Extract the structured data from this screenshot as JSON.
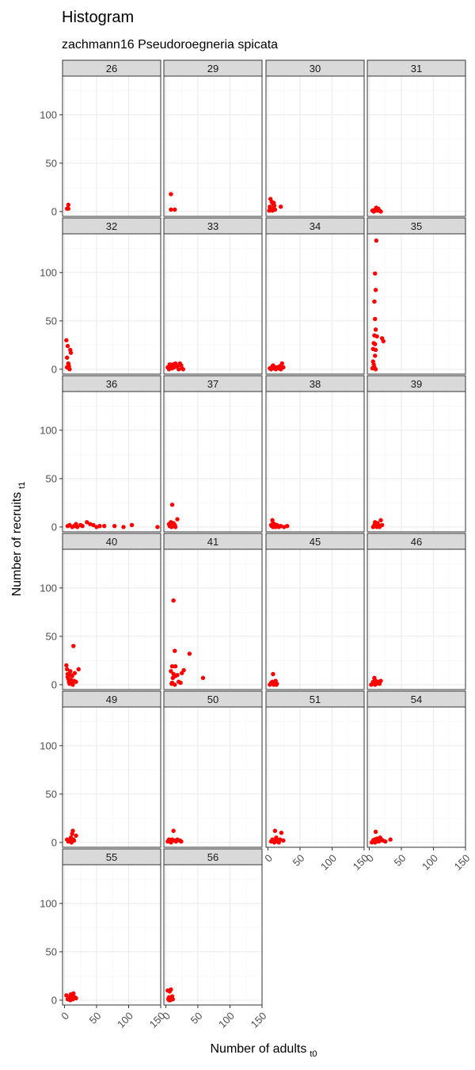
{
  "title": "Histogram",
  "subtitle": "zachmann16 Pseudoroegneria spicata",
  "colors": {
    "points": "#ff0000",
    "strip_fill": "#d9d9d9",
    "panel_border": "#333333",
    "grid_major": "#ebebeb",
    "grid_minor": "#f5f5f5"
  },
  "chart_data": {
    "type": "scatter",
    "facet_by": "quadrat",
    "xlabel": "Number of adults",
    "xlabel_sub": "t0",
    "ylabel": "Number of recruits",
    "ylabel_sub": "t1",
    "xlim": [
      -3,
      150
    ],
    "ylim": [
      -5,
      140
    ],
    "x_ticks": [
      0,
      50,
      100,
      150
    ],
    "y_ticks": [
      0,
      50,
      100
    ],
    "grid": true,
    "panels": [
      {
        "label": "26",
        "points": [
          [
            4,
            3
          ],
          [
            6,
            7
          ],
          [
            6,
            3
          ]
        ]
      },
      {
        "label": "29",
        "points": [
          [
            8,
            18
          ],
          [
            8,
            2
          ],
          [
            14,
            2
          ]
        ]
      },
      {
        "label": "30",
        "points": [
          [
            2,
            1
          ],
          [
            3,
            5
          ],
          [
            4,
            13
          ],
          [
            6,
            10
          ],
          [
            6,
            3
          ],
          [
            8,
            8
          ],
          [
            9,
            9
          ],
          [
            10,
            6
          ],
          [
            11,
            2
          ],
          [
            20,
            5
          ],
          [
            3,
            2
          ],
          [
            7,
            1
          ]
        ]
      },
      {
        "label": "31",
        "points": [
          [
            5,
            1
          ],
          [
            7,
            0
          ],
          [
            9,
            2
          ],
          [
            11,
            4
          ],
          [
            12,
            1
          ],
          [
            14,
            3
          ],
          [
            16,
            1
          ],
          [
            18,
            0
          ]
        ]
      },
      {
        "label": "32",
        "points": [
          [
            3,
            30
          ],
          [
            4,
            12
          ],
          [
            4,
            2
          ],
          [
            5,
            24
          ],
          [
            6,
            6
          ],
          [
            7,
            3
          ],
          [
            7,
            1
          ],
          [
            9,
            20
          ],
          [
            10,
            17
          ],
          [
            8,
            0
          ],
          [
            6,
            5
          ],
          [
            5,
            2
          ]
        ]
      },
      {
        "label": "33",
        "points": [
          [
            3,
            2
          ],
          [
            5,
            0
          ],
          [
            6,
            5
          ],
          [
            8,
            3
          ],
          [
            10,
            1
          ],
          [
            11,
            5
          ],
          [
            13,
            2
          ],
          [
            15,
            6
          ],
          [
            18,
            3
          ],
          [
            20,
            0
          ],
          [
            22,
            6
          ],
          [
            24,
            4
          ],
          [
            25,
            1
          ],
          [
            27,
            0
          ],
          [
            6,
            1
          ],
          [
            9,
            4
          ]
        ]
      },
      {
        "label": "34",
        "points": [
          [
            3,
            1
          ],
          [
            5,
            0
          ],
          [
            6,
            2
          ],
          [
            8,
            4
          ],
          [
            10,
            1
          ],
          [
            12,
            0
          ],
          [
            14,
            2
          ],
          [
            16,
            1
          ],
          [
            18,
            3
          ],
          [
            20,
            0
          ],
          [
            22,
            6
          ],
          [
            24,
            2
          ],
          [
            7,
            3
          ],
          [
            11,
            2
          ]
        ]
      },
      {
        "label": "35",
        "points": [
          [
            11,
            133
          ],
          [
            9,
            99
          ],
          [
            10,
            82
          ],
          [
            8,
            70
          ],
          [
            9,
            52
          ],
          [
            10,
            41
          ],
          [
            8,
            35
          ],
          [
            12,
            34
          ],
          [
            20,
            32
          ],
          [
            22,
            29
          ],
          [
            7,
            27
          ],
          [
            9,
            26
          ],
          [
            6,
            21
          ],
          [
            10,
            20
          ],
          [
            9,
            14
          ],
          [
            6,
            8
          ],
          [
            7,
            5
          ],
          [
            8,
            2
          ],
          [
            10,
            0
          ],
          [
            5,
            1
          ]
        ]
      },
      {
        "label": "36",
        "points": [
          [
            5,
            1
          ],
          [
            8,
            2
          ],
          [
            12,
            0
          ],
          [
            15,
            1
          ],
          [
            18,
            3
          ],
          [
            20,
            0
          ],
          [
            25,
            2
          ],
          [
            28,
            1
          ],
          [
            35,
            5
          ],
          [
            40,
            3
          ],
          [
            45,
            2
          ],
          [
            50,
            0
          ],
          [
            55,
            1
          ],
          [
            62,
            1
          ],
          [
            78,
            1
          ],
          [
            92,
            0
          ],
          [
            105,
            2
          ],
          [
            145,
            0
          ]
        ]
      },
      {
        "label": "37",
        "points": [
          [
            5,
            3
          ],
          [
            6,
            1
          ],
          [
            8,
            5
          ],
          [
            9,
            0
          ],
          [
            10,
            23
          ],
          [
            11,
            2
          ],
          [
            12,
            4
          ],
          [
            13,
            1
          ],
          [
            14,
            2
          ],
          [
            15,
            0
          ],
          [
            18,
            8
          ],
          [
            7,
            2
          ]
        ]
      },
      {
        "label": "38",
        "points": [
          [
            5,
            2
          ],
          [
            6,
            1
          ],
          [
            7,
            7
          ],
          [
            8,
            4
          ],
          [
            9,
            2
          ],
          [
            10,
            3
          ],
          [
            11,
            1
          ],
          [
            12,
            0
          ],
          [
            14,
            2
          ],
          [
            15,
            1
          ],
          [
            17,
            0
          ],
          [
            20,
            1
          ],
          [
            25,
            0
          ],
          [
            30,
            1
          ],
          [
            8,
            0
          ]
        ]
      },
      {
        "label": "39",
        "points": [
          [
            6,
            0
          ],
          [
            8,
            2
          ],
          [
            9,
            5
          ],
          [
            10,
            1
          ],
          [
            11,
            3
          ],
          [
            12,
            0
          ],
          [
            13,
            4
          ],
          [
            14,
            2
          ],
          [
            15,
            1
          ],
          [
            18,
            7
          ],
          [
            20,
            2
          ],
          [
            16,
            0
          ]
        ]
      },
      {
        "label": "40",
        "points": [
          [
            3,
            20
          ],
          [
            4,
            16
          ],
          [
            5,
            11
          ],
          [
            5,
            8
          ],
          [
            6,
            6
          ],
          [
            7,
            3
          ],
          [
            8,
            1
          ],
          [
            9,
            14
          ],
          [
            10,
            5
          ],
          [
            11,
            2
          ],
          [
            12,
            9
          ],
          [
            13,
            0
          ],
          [
            14,
            40
          ],
          [
            15,
            4
          ],
          [
            16,
            12
          ],
          [
            18,
            3
          ],
          [
            22,
            16
          ],
          [
            10,
            10
          ]
        ]
      },
      {
        "label": "41",
        "points": [
          [
            12,
            87
          ],
          [
            14,
            35
          ],
          [
            37,
            32
          ],
          [
            10,
            19
          ],
          [
            15,
            19
          ],
          [
            8,
            14
          ],
          [
            28,
            15
          ],
          [
            25,
            12
          ],
          [
            12,
            11
          ],
          [
            15,
            9
          ],
          [
            18,
            10
          ],
          [
            11,
            7
          ],
          [
            58,
            7
          ],
          [
            20,
            3
          ],
          [
            10,
            2
          ],
          [
            23,
            2
          ],
          [
            14,
            0
          ],
          [
            9,
            1
          ]
        ]
      },
      {
        "label": "45",
        "points": [
          [
            3,
            0
          ],
          [
            5,
            2
          ],
          [
            6,
            1
          ],
          [
            7,
            3
          ],
          [
            8,
            11
          ],
          [
            9,
            0
          ],
          [
            10,
            2
          ],
          [
            11,
            1
          ],
          [
            12,
            4
          ],
          [
            13,
            0
          ],
          [
            14,
            1
          ]
        ]
      },
      {
        "label": "46",
        "points": [
          [
            3,
            0
          ],
          [
            5,
            1
          ],
          [
            6,
            3
          ],
          [
            7,
            2
          ],
          [
            8,
            7
          ],
          [
            9,
            0
          ],
          [
            10,
            4
          ],
          [
            11,
            1
          ],
          [
            12,
            2
          ],
          [
            14,
            3
          ],
          [
            16,
            1
          ],
          [
            18,
            4
          ]
        ]
      },
      {
        "label": "49",
        "points": [
          [
            4,
            3
          ],
          [
            6,
            1
          ],
          [
            8,
            2
          ],
          [
            10,
            5
          ],
          [
            12,
            9
          ],
          [
            13,
            12
          ],
          [
            14,
            3
          ],
          [
            15,
            2
          ],
          [
            18,
            7
          ],
          [
            11,
            0
          ]
        ]
      },
      {
        "label": "50",
        "points": [
          [
            3,
            1
          ],
          [
            5,
            3
          ],
          [
            7,
            2
          ],
          [
            8,
            0
          ],
          [
            10,
            3
          ],
          [
            12,
            12
          ],
          [
            14,
            2
          ],
          [
            16,
            1
          ],
          [
            18,
            3
          ],
          [
            22,
            2
          ],
          [
            24,
            1
          ],
          [
            9,
            1
          ]
        ]
      },
      {
        "label": "51",
        "points": [
          [
            5,
            1
          ],
          [
            7,
            3
          ],
          [
            9,
            2
          ],
          [
            11,
            12
          ],
          [
            12,
            1
          ],
          [
            13,
            5
          ],
          [
            15,
            2
          ],
          [
            17,
            0
          ],
          [
            19,
            3
          ],
          [
            21,
            10
          ],
          [
            24,
            2
          ],
          [
            10,
            0
          ]
        ]
      },
      {
        "label": "54",
        "points": [
          [
            4,
            0
          ],
          [
            6,
            2
          ],
          [
            8,
            3
          ],
          [
            10,
            11
          ],
          [
            11,
            1
          ],
          [
            12,
            4
          ],
          [
            14,
            2
          ],
          [
            15,
            1
          ],
          [
            17,
            5
          ],
          [
            19,
            3
          ],
          [
            21,
            2
          ],
          [
            25,
            1
          ],
          [
            33,
            3
          ],
          [
            9,
            0
          ]
        ]
      },
      {
        "label": "55",
        "points": [
          [
            3,
            5
          ],
          [
            5,
            1
          ],
          [
            7,
            3
          ],
          [
            9,
            0
          ],
          [
            10,
            6
          ],
          [
            11,
            2
          ],
          [
            12,
            4
          ],
          [
            13,
            1
          ],
          [
            14,
            7
          ],
          [
            16,
            3
          ],
          [
            18,
            2
          ],
          [
            8,
            2
          ]
        ]
      },
      {
        "label": "56",
        "points": [
          [
            3,
            10
          ],
          [
            4,
            1
          ],
          [
            5,
            3
          ],
          [
            6,
            9
          ],
          [
            7,
            0
          ],
          [
            8,
            11
          ],
          [
            9,
            2
          ],
          [
            10,
            4
          ],
          [
            11,
            1
          ],
          [
            5,
            0
          ]
        ]
      }
    ]
  }
}
